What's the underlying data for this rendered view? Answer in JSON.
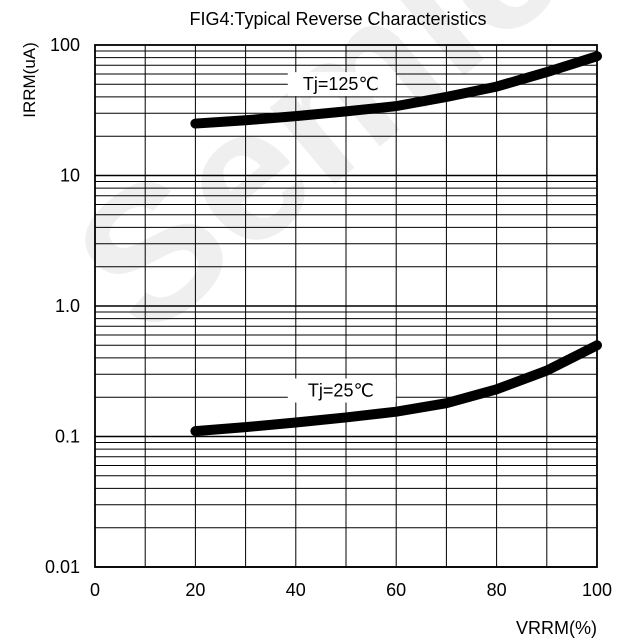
{
  "chart_data": {
    "type": "line",
    "title": "FIG4:Typical Reverse Characteristics",
    "ylabel": "IRRM(uA)",
    "xlabel": "VRRM(%)",
    "x_ticks": [
      "0",
      "20",
      "40",
      "60",
      "80",
      "100"
    ],
    "y_ticks": [
      "0.01",
      "0.1",
      "1.0",
      "10",
      "100"
    ],
    "xlim": [
      0,
      100
    ],
    "ylim": [
      0.01,
      100
    ],
    "y_scale": "log",
    "grid": true,
    "series": [
      {
        "name": "Tj=125℃",
        "x": [
          20,
          30,
          40,
          50,
          60,
          70,
          80,
          90,
          100
        ],
        "y": [
          25,
          26.5,
          28.5,
          31,
          34,
          40,
          48,
          62,
          82
        ]
      },
      {
        "name": "Tj=25℃",
        "x": [
          20,
          30,
          40,
          50,
          60,
          70,
          80,
          90,
          100
        ],
        "y": [
          0.11,
          0.118,
          0.128,
          0.14,
          0.155,
          0.18,
          0.23,
          0.32,
          0.5
        ]
      }
    ],
    "line_color": "#000000"
  },
  "watermark": "Semico"
}
